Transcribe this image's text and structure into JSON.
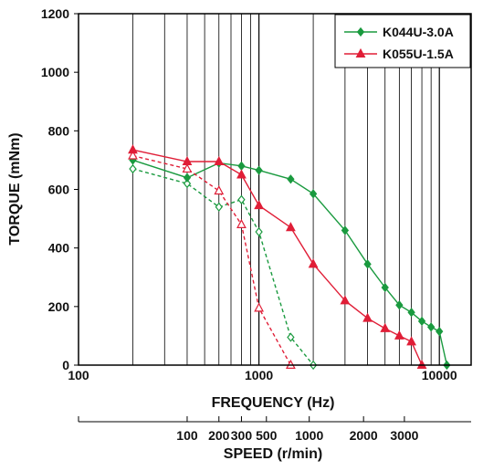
{
  "chart_data": {
    "type": "line",
    "xlabel": "FREQUENCY (Hz)",
    "ylabel": "TORQUE (mNm)",
    "x2label": "SPEED (r/min)",
    "xscale": "log",
    "xlim": [
      100,
      15000
    ],
    "ylim": [
      0,
      1200
    ],
    "grid": "vertical log decades",
    "legend_position": "top-right",
    "y_ticks": [
      0,
      200,
      400,
      600,
      800,
      1000,
      1200
    ],
    "y_tick_labels": [
      "0",
      "200",
      "400",
      "600",
      "800",
      "1000",
      "1200"
    ],
    "x_ticks": [
      100,
      1000,
      10000
    ],
    "x_tick_labels": [
      "100",
      "1000",
      "10000"
    ],
    "speed_ticks": [
      {
        "label": "100",
        "hz": 400
      },
      {
        "label": "200",
        "hz": 600
      },
      {
        "label": "300",
        "hz": 800
      },
      {
        "label": "500",
        "hz": 1100
      },
      {
        "label": "1000",
        "hz": 1900
      },
      {
        "label": "2000",
        "hz": 3800
      },
      {
        "label": "3000",
        "hz": 6400
      }
    ],
    "series": [
      {
        "name": "K044U-3.0A",
        "color": "#1a9a3f",
        "marker": "diamond",
        "pullout": {
          "x": [
            200,
            400,
            600,
            800,
            1000,
            1500,
            2000,
            3000,
            4000,
            5000,
            6000,
            7000,
            8000,
            9000,
            10000,
            11000
          ],
          "y": [
            700,
            640,
            690,
            680,
            665,
            635,
            585,
            460,
            345,
            265,
            205,
            180,
            150,
            130,
            115,
            0
          ]
        },
        "pullin": {
          "x": [
            200,
            400,
            600,
            800,
            1000,
            1500,
            2000
          ],
          "y": [
            670,
            620,
            540,
            565,
            455,
            95,
            0
          ]
        }
      },
      {
        "name": "K055U-1.5A",
        "color": "#e01e37",
        "marker": "triangle",
        "pullout": {
          "x": [
            200,
            400,
            600,
            800,
            1000,
            1500,
            2000,
            3000,
            4000,
            5000,
            6000,
            7000,
            8000
          ],
          "y": [
            735,
            695,
            695,
            650,
            545,
            470,
            345,
            220,
            160,
            125,
            100,
            80,
            0
          ]
        },
        "pullin": {
          "x": [
            200,
            400,
            600,
            800,
            1000,
            1500
          ],
          "y": [
            715,
            670,
            595,
            480,
            195,
            0
          ]
        }
      }
    ]
  }
}
